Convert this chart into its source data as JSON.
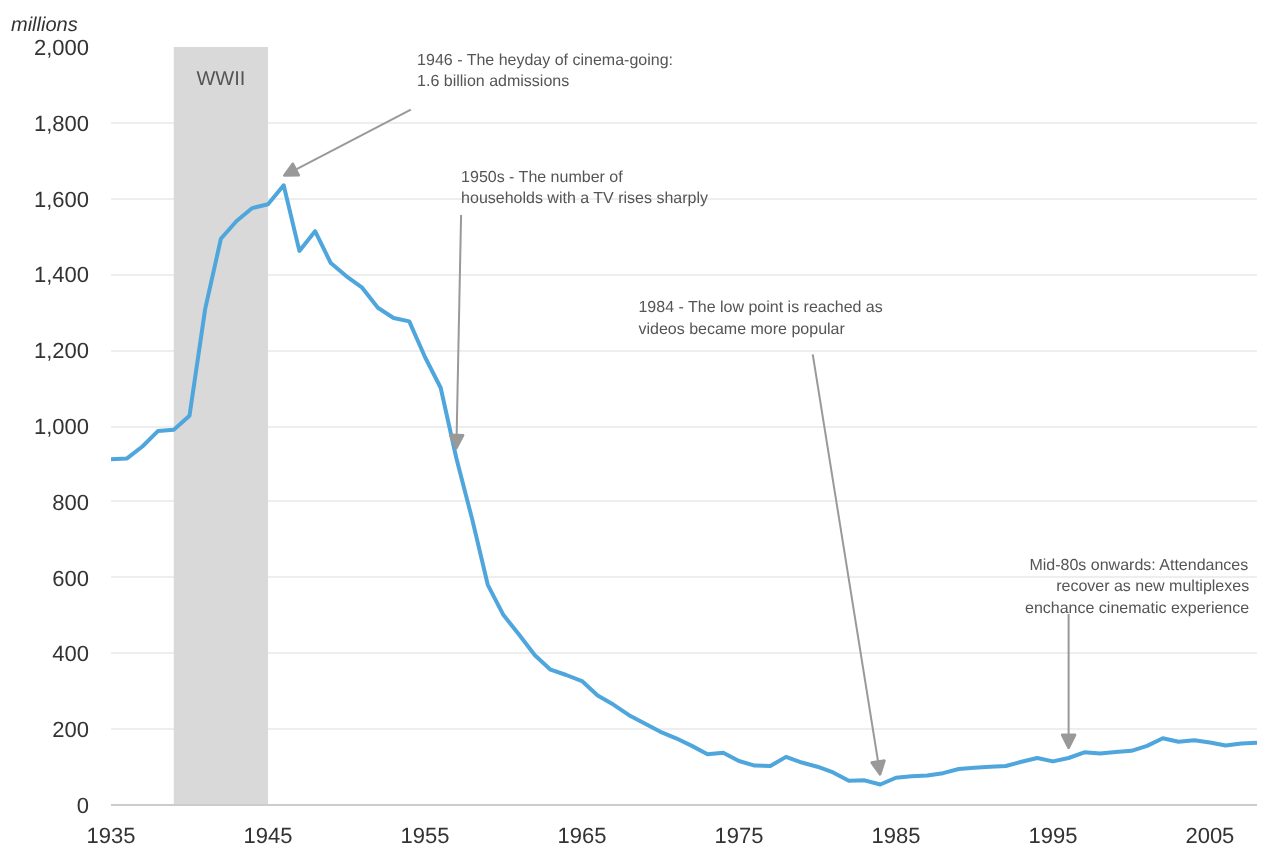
{
  "chart_data": {
    "type": "line",
    "ylabel": "millions",
    "x": [
      1935,
      1936,
      1937,
      1938,
      1939,
      1940,
      1941,
      1942,
      1943,
      1944,
      1945,
      1946,
      1947,
      1948,
      1949,
      1950,
      1951,
      1952,
      1953,
      1954,
      1955,
      1956,
      1957,
      1958,
      1959,
      1960,
      1961,
      1962,
      1963,
      1964,
      1965,
      1966,
      1967,
      1968,
      1969,
      1970,
      1971,
      1972,
      1973,
      1974,
      1975,
      1976,
      1977,
      1978,
      1979,
      1980,
      1981,
      1982,
      1983,
      1984,
      1985,
      1986,
      1987,
      1988,
      1989,
      1990,
      1991,
      1992,
      1993,
      1994,
      1995,
      1996,
      1997,
      1998,
      1999,
      2000,
      2001,
      2002,
      2003,
      2004,
      2005,
      2006,
      2007,
      2008
    ],
    "series": [
      {
        "color": "#4ea6dc",
        "values": [
          912,
          914,
          946,
          987,
          990,
          1027,
          1309,
          1494,
          1541,
          1575,
          1585,
          1635,
          1462,
          1514,
          1430,
          1395,
          1365,
          1312,
          1285,
          1276,
          1182,
          1101,
          915,
          755,
          581,
          501,
          449,
          395,
          357,
          343,
          327,
          289,
          265,
          237,
          215,
          193,
          176,
          156,
          134,
          138,
          116,
          104,
          103,
          127,
          112,
          101,
          86,
          64,
          65,
          54,
          72,
          76,
          78,
          84,
          95,
          98,
          101,
          103,
          114,
          124,
          115,
          124,
          139,
          136,
          140,
          143,
          156,
          176,
          167,
          171,
          165,
          157,
          162,
          164
        ]
      }
    ],
    "xlim": [
      1935,
      2008
    ],
    "xticks": [
      1935,
      1945,
      1955,
      1965,
      1975,
      1985,
      1995,
      2005
    ],
    "ylim": [
      0,
      2000
    ],
    "yticks": [
      0,
      200,
      400,
      600,
      800,
      {
        "value": 1000,
        "label": "1,000"
      },
      {
        "value": 1200,
        "label": "1,200"
      },
      {
        "value": 1400,
        "label": "1,400"
      },
      {
        "value": 1600,
        "label": "1,600"
      },
      {
        "value": 1800,
        "label": "1,800"
      },
      {
        "value": 2000,
        "label": "2,000"
      }
    ],
    "grid": "y",
    "marker": "none",
    "line_style": "solid",
    "bands": [
      {
        "axis": "x",
        "from": 1939,
        "to": 1945,
        "label": "WWII",
        "color": "#d9d9d9"
      }
    ],
    "annotations": [
      {
        "text": "1946 - The heyday of cinema-going:\n1.6 billion admissions",
        "x": 1946,
        "y": 1635
      },
      {
        "text": "1950s - The number of\nhouseholds with a TV rises sharply",
        "x": 1957,
        "y": 915
      },
      {
        "text": "1984 - The low point is reached as\nvideos became more popular",
        "x": 1984,
        "y": 54
      },
      {
        "text": "Mid-80s onwards: Attendances\nrecover as new multiplexes\nenchance cinematic experience",
        "x": 1996,
        "y": 124
      }
    ]
  }
}
